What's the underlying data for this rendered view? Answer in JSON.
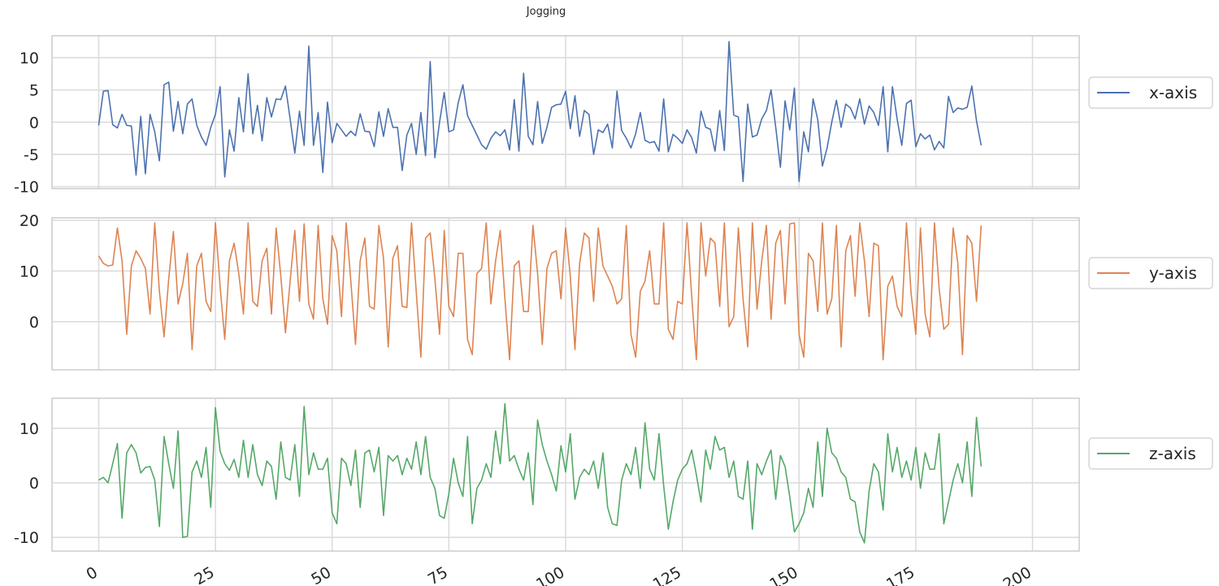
{
  "title": "Jogging",
  "chart_data": [
    {
      "type": "line",
      "series": [
        {
          "name": "x-axis",
          "color": "#4c72b0",
          "y": [
            -0.5,
            4.8,
            4.9,
            -0.4,
            -0.9,
            1.2,
            -0.5,
            -0.6,
            -8.2,
            0.9,
            -8.0,
            1.2,
            -1.5,
            -6.0,
            5.8,
            6.2,
            -1.4,
            3.2,
            -1.8,
            2.8,
            3.6,
            -0.5,
            -2.3,
            -3.6,
            -0.8,
            1.2,
            5.5,
            -8.5,
            -1.2,
            -4.5,
            3.8,
            -1.5,
            7.5,
            -1.8,
            2.6,
            -2.9,
            3.8,
            0.8,
            3.6,
            3.5,
            5.6,
            0.5,
            -4.8,
            1.7,
            -3.6,
            11.8,
            -3.6,
            1.5,
            -7.8,
            3.1,
            -3.2,
            -0.2,
            -1.2,
            -2.2,
            -1.4,
            -2.1,
            1.3,
            -1.4,
            -1.5,
            -3.8,
            1.6,
            -2.2,
            2.1,
            -0.8,
            -0.8,
            -7.5,
            -2.0,
            -0.2,
            -5.0,
            1.5,
            -5.2,
            9.4,
            -5.5,
            0.0,
            4.6,
            -1.5,
            -1.2,
            3.0,
            5.8,
            1.0,
            -0.5,
            -2.0,
            -3.5,
            -4.2,
            -2.5,
            -1.5,
            -2.1,
            -1.2,
            -4.3,
            3.5,
            -4.5,
            7.6,
            -2.2,
            -3.5,
            3.2,
            -3.3,
            -0.8,
            2.3,
            2.7,
            2.8,
            4.8,
            -1.0,
            4.1,
            -2.2,
            1.8,
            1.2,
            -5.0,
            -1.2,
            -1.6,
            -0.3,
            -4.0,
            4.8,
            -1.3,
            -2.5,
            -4.0,
            -1.8,
            1.5,
            -2.8,
            -3.2,
            -3.0,
            -4.5,
            3.6,
            -4.6,
            -1.9,
            -2.5,
            -3.3,
            -1.2,
            -2.4,
            -4.8,
            1.7,
            -0.8,
            -1.1,
            -4.5,
            1.8,
            -4.4,
            12.5,
            1.1,
            0.8,
            -9.2,
            2.8,
            -2.3,
            -2.0,
            0.5,
            1.8,
            5.0,
            -0.8,
            -7.0,
            3.3,
            -1.2,
            5.3,
            -9.2,
            -1.5,
            -4.6,
            3.6,
            0.4,
            -6.8,
            -4.0,
            0.0,
            3.4,
            -0.8,
            2.8,
            2.2,
            0.5,
            3.6,
            -0.3,
            2.5,
            1.5,
            -0.5,
            5.5,
            -4.6,
            5.5,
            0.5,
            -3.6,
            2.9,
            3.4,
            -3.8,
            -1.8,
            -2.6,
            -2.0,
            -4.3,
            -3.0,
            -4.0,
            4.0,
            1.5,
            2.2,
            2.0,
            2.3,
            5.6,
            0.2,
            -3.6
          ]
        }
      ],
      "xlim": [
        -10,
        210
      ],
      "ylim": [
        -10.3,
        13.4
      ],
      "xticks": [
        0,
        25,
        50,
        75,
        100,
        125,
        150,
        175,
        200
      ],
      "yticks": [
        -10,
        -5,
        0,
        5,
        10
      ],
      "grid": true,
      "legend_position": "right"
    },
    {
      "type": "line",
      "series": [
        {
          "name": "y-axis",
          "color": "#dd8452",
          "y": [
            13.0,
            11.5,
            11.0,
            11.2,
            18.5,
            12.0,
            -2.5,
            11.0,
            14.0,
            12.5,
            10.5,
            1.5,
            19.5,
            6.0,
            -3.0,
            8.5,
            17.8,
            3.5,
            7.5,
            13.5,
            -5.5,
            11.0,
            13.5,
            4.0,
            2.0,
            19.5,
            7.0,
            -3.5,
            12.0,
            15.5,
            9.5,
            1.5,
            19.5,
            4.0,
            3.0,
            12.0,
            14.5,
            1.5,
            18.5,
            9.0,
            -2.2,
            8.0,
            18.0,
            4.0,
            19.3,
            3.5,
            0.5,
            19.0,
            4.5,
            -0.5,
            17.0,
            14.0,
            1.0,
            19.5,
            8.0,
            -4.5,
            12.0,
            16.5,
            3.0,
            2.5,
            19.0,
            12.5,
            -5.0,
            12.5,
            15.0,
            3.0,
            2.8,
            19.5,
            6.0,
            -7.0,
            16.5,
            17.5,
            8.5,
            -2.5,
            18.0,
            3.0,
            1.0,
            13.5,
            13.5,
            -3.5,
            -6.5,
            9.5,
            10.5,
            19.5,
            3.5,
            12.0,
            18.0,
            4.5,
            -7.5,
            11.0,
            12.0,
            2.0,
            2.0,
            19.0,
            9.5,
            -4.5,
            10.5,
            13.5,
            14.0,
            4.5,
            18.5,
            9.0,
            -5.5,
            11.5,
            17.5,
            16.5,
            4.0,
            18.5,
            11.0,
            9.0,
            7.0,
            3.5,
            4.5,
            19.0,
            -2.5,
            -7.0,
            6.0,
            8.0,
            14.0,
            3.5,
            3.5,
            19.5,
            -1.5,
            -3.5,
            4.0,
            3.5,
            19.5,
            5.0,
            -7.5,
            19.5,
            9.0,
            16.5,
            15.5,
            3.0,
            19.5,
            -1.0,
            1.0,
            18.5,
            4.5,
            -5.0,
            19.5,
            2.5,
            12.0,
            19.0,
            0.5,
            15.5,
            18.0,
            3.5,
            19.3,
            19.5,
            -2.5,
            -7.0,
            13.5,
            12.0,
            2.0,
            19.5,
            1.5,
            4.5,
            19.0,
            -5.0,
            14.0,
            17.0,
            5.0,
            19.5,
            12.0,
            1.0,
            15.5,
            15.0,
            -7.5,
            7.0,
            9.0,
            3.0,
            1.0,
            19.5,
            5.5,
            -2.5,
            18.5,
            1.5,
            -3.0,
            19.5,
            6.5,
            -1.5,
            -0.5,
            18.5,
            11.5,
            -6.5,
            17.0,
            15.5,
            4.0,
            19.0
          ]
        }
      ],
      "xlim": [
        -10,
        210
      ],
      "ylim": [
        -9.5,
        20.5
      ],
      "xticks": [
        0,
        25,
        50,
        75,
        100,
        125,
        150,
        175,
        200
      ],
      "yticks": [
        0,
        10,
        20
      ],
      "grid": true,
      "legend_position": "right"
    },
    {
      "type": "line",
      "series": [
        {
          "name": "z-axis",
          "color": "#55a868",
          "y": [
            0.5,
            1.0,
            0.0,
            3.5,
            7.2,
            -6.5,
            5.5,
            7.0,
            5.5,
            1.8,
            2.8,
            3.0,
            0.5,
            -8.0,
            8.5,
            3.5,
            -1.0,
            9.5,
            -10.0,
            -9.8,
            2.0,
            4.0,
            1.0,
            6.5,
            -4.5,
            13.8,
            5.8,
            3.5,
            2.3,
            4.3,
            1.0,
            7.8,
            1.0,
            7.0,
            1.5,
            -0.5,
            4.0,
            3.0,
            -3.0,
            7.5,
            1.0,
            0.5,
            7.0,
            -2.5,
            14.0,
            1.5,
            5.5,
            2.5,
            2.5,
            4.5,
            -5.5,
            -7.5,
            4.5,
            3.5,
            -0.5,
            6.0,
            -4.5,
            5.5,
            6.0,
            2.0,
            6.5,
            -6.0,
            5.0,
            4.0,
            5.0,
            1.5,
            4.5,
            2.5,
            7.5,
            1.5,
            8.5,
            1.0,
            -1.0,
            -6.0,
            -6.5,
            -2.0,
            4.5,
            0.0,
            -2.5,
            8.5,
            -7.5,
            -1.0,
            0.5,
            3.5,
            1.0,
            9.5,
            3.5,
            14.5,
            4.0,
            5.0,
            2.5,
            0.5,
            5.5,
            -4.0,
            11.5,
            7.0,
            4.0,
            1.5,
            -1.5,
            6.8,
            2.0,
            9.0,
            -3.0,
            1.0,
            2.5,
            1.5,
            4.0,
            -1.0,
            5.5,
            -4.5,
            -7.5,
            -7.8,
            0.5,
            3.5,
            1.5,
            6.5,
            -1.0,
            11.0,
            2.5,
            0.5,
            9.0,
            -0.5,
            -8.5,
            -3.5,
            0.5,
            2.5,
            3.5,
            6.0,
            1.5,
            -3.5,
            6.0,
            2.5,
            8.5,
            6.0,
            6.5,
            1.0,
            4.0,
            -2.5,
            -3.0,
            4.0,
            -8.5,
            3.5,
            1.5,
            4.0,
            6.0,
            -3.0,
            5.0,
            3.0,
            -2.5,
            -9.0,
            -7.5,
            -5.5,
            -1.0,
            -4.5,
            7.5,
            -2.5,
            10.0,
            5.5,
            4.5,
            2.0,
            1.0,
            -3.0,
            -3.5,
            -9.0,
            -11.0,
            -1.5,
            3.5,
            2.0,
            -5.0,
            9.0,
            2.0,
            6.5,
            1.0,
            4.0,
            0.5,
            6.5,
            -1.0,
            5.5,
            2.5,
            2.5,
            9.0,
            -7.5,
            -3.5,
            0.5,
            3.5,
            0.0,
            7.5,
            -2.5,
            12.0,
            3.0
          ]
        }
      ],
      "xlim": [
        -10,
        210
      ],
      "ylim": [
        -12.5,
        15.5
      ],
      "xticks": [
        0,
        25,
        50,
        75,
        100,
        125,
        150,
        175,
        200
      ],
      "yticks": [
        -10,
        0,
        10
      ],
      "grid": true,
      "legend_position": "right"
    }
  ]
}
